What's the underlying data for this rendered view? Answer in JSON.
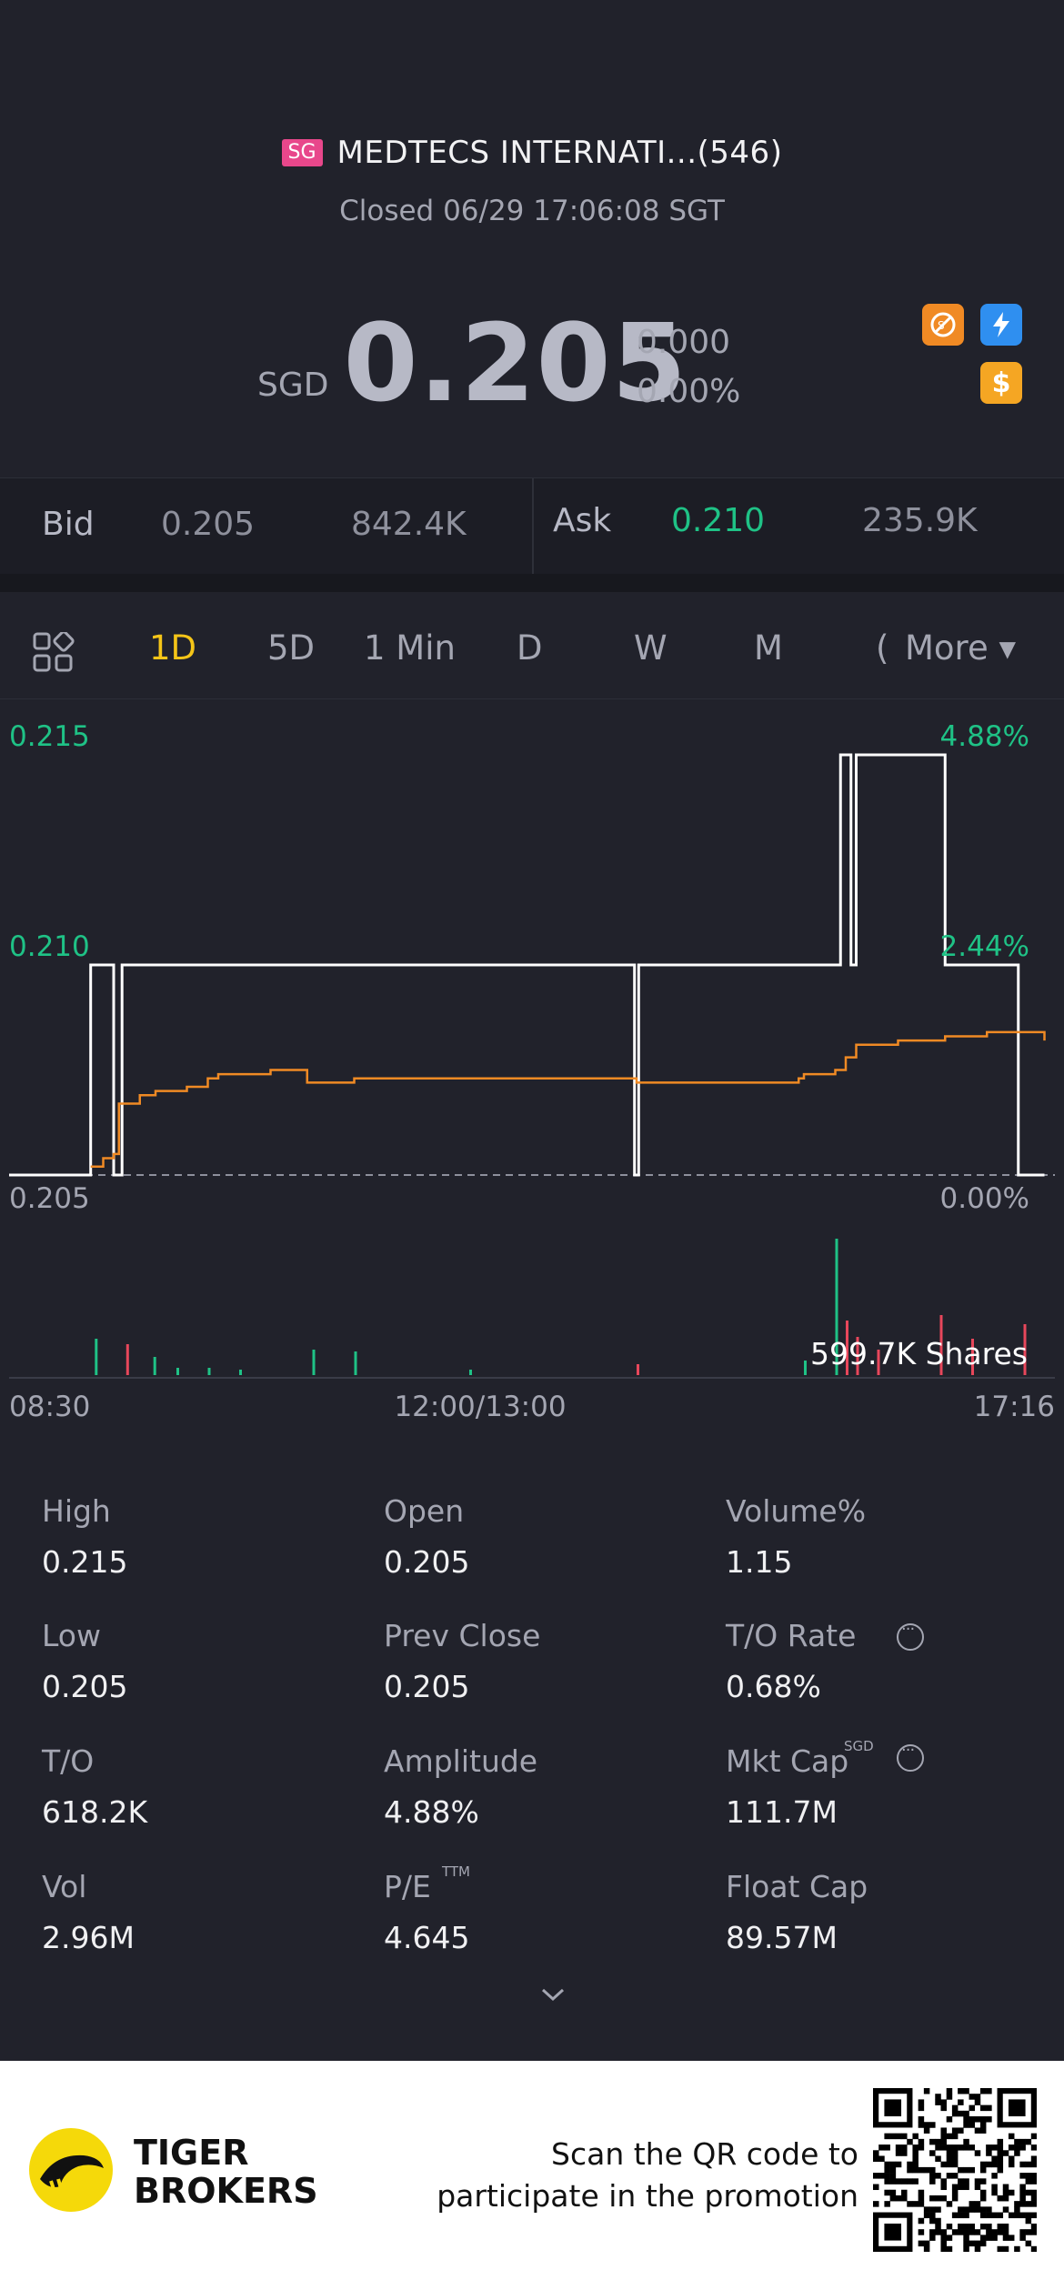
{
  "header": {
    "market_badge": "SG",
    "stock_name": "MEDTECS INTERNATI...(546)",
    "status": "Closed 06/29 17:06:08 SGT",
    "currency": "SGD",
    "price": "0.205",
    "change": "0.000",
    "change_pct": "0.00%",
    "icons": [
      "no-short-icon",
      "lightning-icon",
      "dollar-icon"
    ]
  },
  "quote": {
    "bid_label": "Bid",
    "bid_price": "0.205",
    "bid_size": "842.4K",
    "ask_label": "Ask",
    "ask_price": "0.210",
    "ask_size": "235.9K"
  },
  "tabs": {
    "items": [
      "1D",
      "5D",
      "1 Min",
      "D",
      "W",
      "M"
    ],
    "partial": "(",
    "more": "More ▾",
    "active": "1D"
  },
  "chart_data": {
    "type": "line",
    "y_left_labels": [
      "0.215",
      "0.210",
      "0.205"
    ],
    "y_right_labels": [
      "4.88%",
      "2.44%",
      "0.00%"
    ],
    "ylim": [
      0.205,
      0.215
    ],
    "prev_close": 0.205,
    "x_labels": [
      "08:30",
      "12:00/13:00",
      "17:16"
    ],
    "volume_label": "599.7K Shares",
    "series": [
      {
        "color": "#ffffff",
        "x": [
          0,
          0.075,
          0.078,
          0.095,
          0.1,
          0.105,
          0.108,
          0.596,
          0.598,
          0.6,
          0.602,
          0.79,
          0.795,
          0.8,
          0.805,
          0.808,
          0.81,
          0.89,
          0.895,
          0.962,
          0.965,
          0.99
        ],
        "values": [
          0.205,
          0.205,
          0.21,
          0.21,
          0.205,
          0.205,
          0.21,
          0.21,
          0.205,
          0.205,
          0.21,
          0.21,
          0.215,
          0.215,
          0.21,
          0.21,
          0.215,
          0.215,
          0.21,
          0.21,
          0.205,
          0.205
        ]
      },
      {
        "color": "#f08a24",
        "x": [
          0.078,
          0.09,
          0.1,
          0.105,
          0.125,
          0.14,
          0.17,
          0.19,
          0.2,
          0.25,
          0.285,
          0.325,
          0.33,
          0.45,
          0.6,
          0.7,
          0.755,
          0.76,
          0.79,
          0.8,
          0.81,
          0.85,
          0.89,
          0.895,
          0.935,
          0.962,
          0.99
        ],
        "values": [
          0.2052,
          0.2054,
          0.2055,
          0.2067,
          0.2069,
          0.207,
          0.2071,
          0.2073,
          0.2074,
          0.2075,
          0.2072,
          0.2072,
          0.2073,
          0.2073,
          0.2072,
          0.2072,
          0.2073,
          0.2074,
          0.2075,
          0.2078,
          0.2081,
          0.2082,
          0.2082,
          0.2083,
          0.2084,
          0.2084,
          0.2082
        ]
      }
    ]
  },
  "stats": {
    "high_label": "High",
    "high": "0.215",
    "open_label": "Open",
    "open": "0.205",
    "volpct_label": "Volume%",
    "volpct": "1.15",
    "low_label": "Low",
    "low": "0.205",
    "prevclose_label": "Prev Close",
    "prevclose": "0.205",
    "tor_label": "T/O Rate",
    "tor": "0.68%",
    "to_label": "T/O",
    "to": "618.2K",
    "amp_label": "Amplitude",
    "amp": "4.88%",
    "mktcap_label": "Mkt Cap",
    "mktcap_sup": "SGD",
    "mktcap": "111.7M",
    "vol_label": "Vol",
    "vol": "2.96M",
    "pe_label": "P/E",
    "pe_sup": "TTM",
    "pe": "4.645",
    "floatcap_label": "Float Cap",
    "floatcap": "89.57M"
  },
  "footer": {
    "brand_line1": "TIGER",
    "brand_line2": "BROKERS",
    "promo_line1": "Scan the QR code to",
    "promo_line2": "participate in the promotion"
  },
  "colors": {
    "background": "#21222b",
    "up": "#1fc286",
    "down": "#e8475b",
    "active_tab": "#f5c518",
    "avg_line": "#f08a24"
  }
}
